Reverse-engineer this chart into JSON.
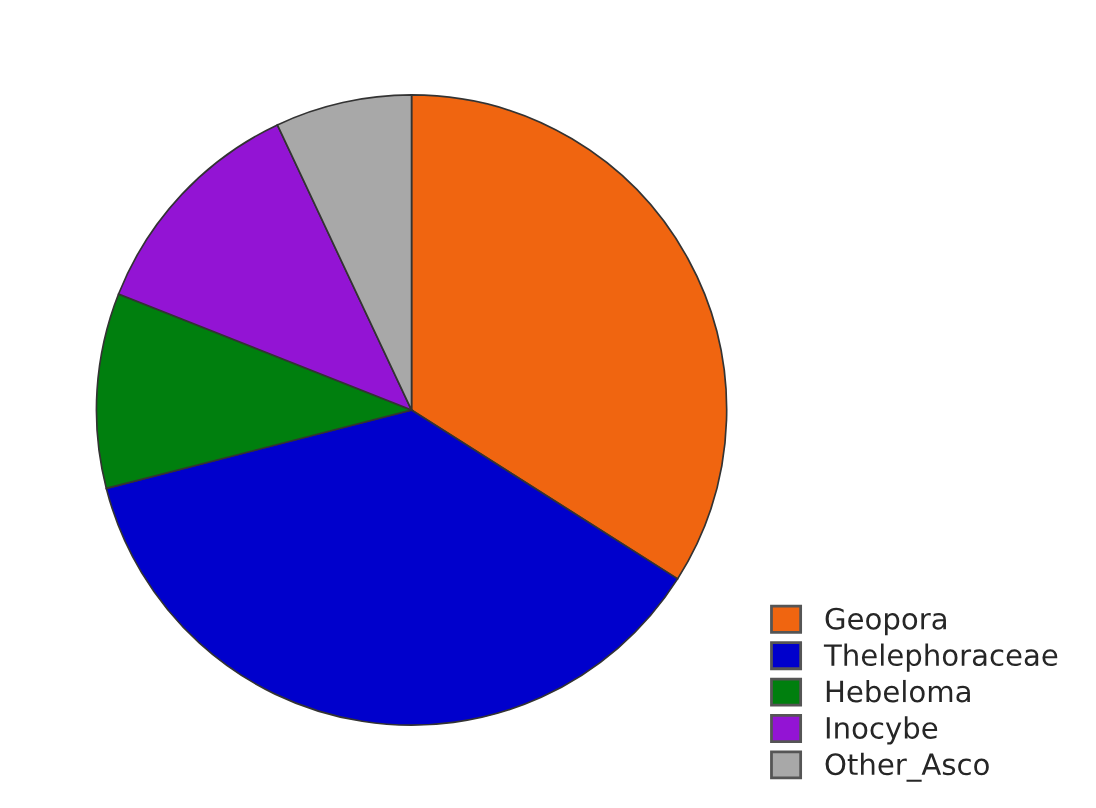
{
  "chart_data": {
    "type": "pie",
    "categories": [
      "Geopora",
      "Thelephoraceae",
      "Hebeloma",
      "Inocybe",
      "Other_Asco"
    ],
    "values": [
      34,
      37,
      10,
      12,
      7
    ],
    "colors": [
      "#f06510",
      "#0000cc",
      "#007f0e",
      "#9314d4",
      "#a8a8a8"
    ],
    "legend": "bottom right"
  }
}
